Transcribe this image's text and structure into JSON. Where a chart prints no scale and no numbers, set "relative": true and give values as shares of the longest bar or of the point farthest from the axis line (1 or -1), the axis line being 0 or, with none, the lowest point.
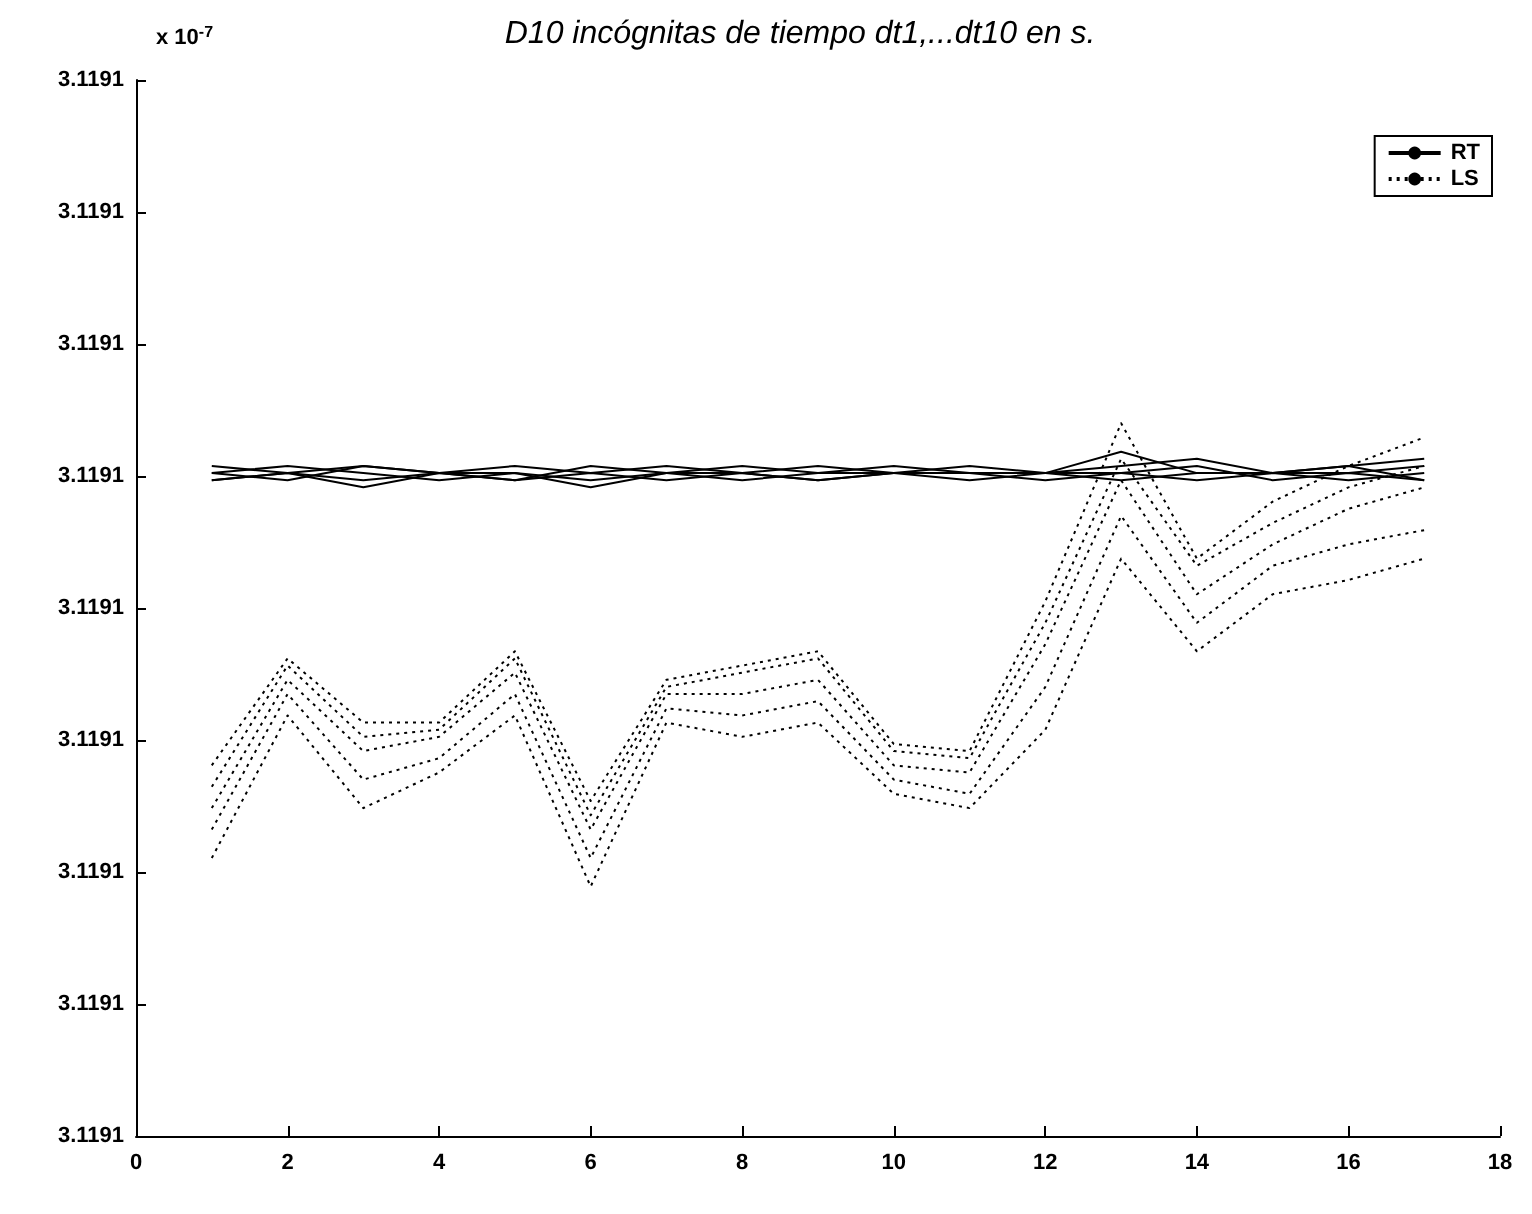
{
  "chart_data": {
    "type": "line",
    "title": "D10 incógnitas de tiempo dt1,...dt10 en s.",
    "annotations": [
      "x 10$^{-7}$",
      "3.1191",
      "3.1191",
      "3.1191",
      "3.1191",
      "3.1191",
      "3.1191",
      "3.1191",
      "3.1191",
      "3.1191"
    ],
    "relative": true,
    "x": [
      1,
      2,
      3,
      4,
      5,
      6,
      7,
      8,
      9,
      10,
      11,
      12,
      13,
      14,
      15,
      16,
      17
    ],
    "xlim": [
      0,
      18
    ],
    "xticks": [
      0,
      2,
      4,
      6,
      8,
      10,
      12,
      14,
      16,
      18
    ],
    "tick_labels": "x",
    "legend": "top right",
    "series": [
      {
        "name": "RT",
        "color": "#000000",
        "line_style": "solid",
        "values": [
          0.94,
          0.93,
          0.94,
          0.93,
          0.94,
          0.93,
          0.94,
          0.93,
          0.94,
          0.93,
          0.94,
          0.93,
          0.96,
          0.93,
          0.93,
          0.94,
          0.95
        ]
      },
      {
        "color": "#000000",
        "line_style": "solid",
        "values": [
          0.92,
          0.93,
          0.92,
          0.93,
          0.92,
          0.93,
          0.92,
          0.93,
          0.92,
          0.93,
          0.93,
          0.93,
          0.94,
          0.95,
          0.93,
          0.93,
          0.94
        ]
      },
      {
        "color": "#000000",
        "line_style": "solid",
        "values": [
          0.93,
          0.94,
          0.93,
          0.92,
          0.93,
          0.92,
          0.93,
          0.94,
          0.93,
          0.93,
          0.92,
          0.93,
          0.93,
          0.92,
          0.93,
          0.92,
          0.93
        ]
      },
      {
        "color": "#000000",
        "line_style": "solid",
        "values": [
          0.93,
          0.92,
          0.94,
          0.93,
          0.92,
          0.94,
          0.93,
          0.92,
          0.93,
          0.94,
          0.93,
          0.92,
          0.93,
          0.94,
          0.92,
          0.93,
          0.92
        ]
      },
      {
        "color": "#000000",
        "line_style": "solid",
        "values": [
          0.92,
          0.93,
          0.91,
          0.93,
          0.93,
          0.91,
          0.93,
          0.93,
          0.92,
          0.93,
          0.93,
          0.93,
          0.92,
          0.93,
          0.93,
          0.94,
          0.92
        ]
      },
      {
        "name": "LS",
        "color": "#000000",
        "line_style": "dotted",
        "values": [
          0.39,
          0.59,
          0.46,
          0.51,
          0.59,
          0.35,
          0.58,
          0.56,
          0.58,
          0.48,
          0.46,
          0.57,
          0.81,
          0.68,
          0.76,
          0.78,
          0.81
        ]
      },
      {
        "color": "#000000",
        "line_style": "dotted",
        "values": [
          0.43,
          0.62,
          0.5,
          0.53,
          0.62,
          0.39,
          0.6,
          0.59,
          0.61,
          0.5,
          0.48,
          0.63,
          0.87,
          0.72,
          0.8,
          0.83,
          0.85
        ]
      },
      {
        "color": "#000000",
        "line_style": "dotted",
        "values": [
          0.46,
          0.64,
          0.54,
          0.56,
          0.65,
          0.43,
          0.62,
          0.62,
          0.64,
          0.52,
          0.51,
          0.69,
          0.92,
          0.76,
          0.83,
          0.88,
          0.91
        ]
      },
      {
        "color": "#000000",
        "line_style": "dotted",
        "values": [
          0.49,
          0.66,
          0.56,
          0.57,
          0.67,
          0.45,
          0.63,
          0.65,
          0.67,
          0.54,
          0.53,
          0.72,
          0.95,
          0.8,
          0.86,
          0.91,
          0.94
        ]
      },
      {
        "color": "#000000",
        "line_style": "dotted",
        "values": [
          0.52,
          0.67,
          0.58,
          0.58,
          0.68,
          0.47,
          0.64,
          0.66,
          0.68,
          0.55,
          0.54,
          0.75,
          1,
          0.81,
          0.89,
          0.94,
          0.98
        ]
      }
    ]
  }
}
